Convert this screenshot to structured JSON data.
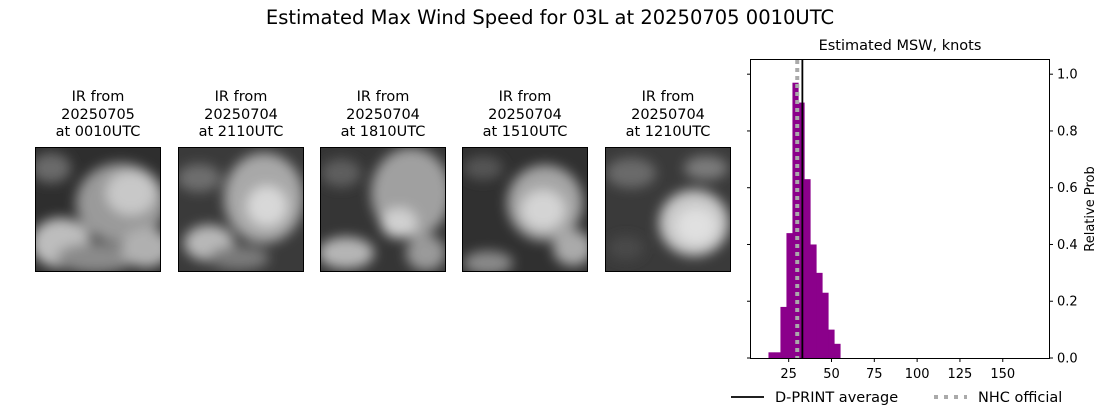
{
  "figure": {
    "title": "Estimated Max Wind Speed for 03L at 20250705 0010UTC"
  },
  "ir_panels": [
    {
      "line1": "IR from",
      "line2": "20250705",
      "line3": "at 0010UTC"
    },
    {
      "line1": "IR from",
      "line2": "20250704",
      "line3": "at 2110UTC"
    },
    {
      "line1": "IR from",
      "line2": "20250704",
      "line3": "at 1810UTC"
    },
    {
      "line1": "IR from",
      "line2": "20250704",
      "line3": "at 1510UTC"
    },
    {
      "line1": "IR from",
      "line2": "20250704",
      "line3": "at 1210UTC"
    }
  ],
  "chart_data": {
    "type": "bar",
    "title": "Estimated MSW, knots",
    "xlabel": "",
    "ylabel": "Relative Prob",
    "xlim": [
      3,
      177
    ],
    "ylim": [
      0,
      1.05
    ],
    "xticks": [
      25,
      50,
      75,
      100,
      125,
      150
    ],
    "yticks": [
      0.0,
      0.2,
      0.4,
      0.6,
      0.8,
      1.0
    ],
    "ytick_labels": [
      "0.0",
      "0.2",
      "0.4",
      "0.6",
      "0.8",
      "1.0"
    ],
    "y_axis_side": "right",
    "bin_width": 3.6,
    "bar_color": "#8b008b",
    "bins": [
      {
        "x": 15,
        "value": 0.02
      },
      {
        "x": 18.5,
        "value": 0.02
      },
      {
        "x": 22,
        "value": 0.18
      },
      {
        "x": 25.5,
        "value": 0.44
      },
      {
        "x": 29,
        "value": 0.97
      },
      {
        "x": 32.5,
        "value": 0.9
      },
      {
        "x": 36,
        "value": 0.63
      },
      {
        "x": 39.5,
        "value": 0.4
      },
      {
        "x": 43,
        "value": 0.3
      },
      {
        "x": 46.5,
        "value": 0.23
      },
      {
        "x": 50,
        "value": 0.1
      },
      {
        "x": 53.5,
        "value": 0.05
      }
    ],
    "lines": [
      {
        "name": "D-PRINT average",
        "x": 33,
        "color": "#000000",
        "style": "solid"
      },
      {
        "name": "NHC official",
        "x": 30,
        "color": "#aaaaaa",
        "style": "dotted"
      }
    ],
    "legend_position": "bottom"
  }
}
